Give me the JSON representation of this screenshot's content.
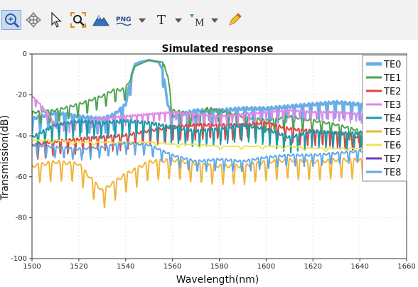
{
  "toolbar": {
    "buttons": [
      {
        "name": "zoom-region-button",
        "icon": "zoom-region-icon",
        "active": true
      },
      {
        "name": "pan-button",
        "icon": "pan-arrows-icon"
      },
      {
        "name": "select-button",
        "icon": "cursor-arrow-icon"
      },
      {
        "name": "zoom-fit-button",
        "icon": "zoom-fit-icon"
      },
      {
        "name": "plot-style-button",
        "icon": "mountain-icon"
      },
      {
        "name": "export-png-button",
        "icon": "png-file-icon",
        "text": "PNG"
      },
      {
        "name": "text-button",
        "icon": "text-t-icon",
        "text": "T"
      },
      {
        "name": "marker-button",
        "icon": "marker-m-icon",
        "text": "M"
      },
      {
        "name": "draw-button",
        "icon": "pencil-icon"
      }
    ]
  },
  "colors": {
    "TE0": "#6aaee8",
    "TE1": "#4ea34e",
    "TE2": "#e04444",
    "TE3": "#dd88e8",
    "TE4": "#1b9aaa",
    "TE5": "#f2b43c",
    "TE6": "#f0e64a",
    "TE7": "#6a3fb8",
    "TE8": "#5ea9e6"
  },
  "chart_data": {
    "type": "line",
    "title": "Simulated response",
    "xlabel": "Wavelength(nm)",
    "ylabel": "Transmission(dB)",
    "xlim": [
      1500,
      1660
    ],
    "ylim": [
      -100,
      0
    ],
    "xticks": [
      1500,
      1520,
      1540,
      1560,
      1580,
      1600,
      1620,
      1640,
      1660
    ],
    "yticks": [
      0,
      -20,
      -40,
      -60,
      -80,
      -100
    ],
    "legend_position": "top-right",
    "series": [
      {
        "name": "TE0",
        "x": [
          1500,
          1510,
          1520,
          1530,
          1535,
          1540,
          1542,
          1544,
          1546,
          1550,
          1554,
          1556,
          1558,
          1560,
          1570,
          1580,
          1590,
          1600,
          1610,
          1620,
          1630,
          1640,
          1642
        ],
        "y": [
          -31,
          -28,
          -30,
          -31,
          -29,
          -24,
          -12,
          -5,
          -4,
          -3,
          -4,
          -8,
          -24,
          -30,
          -27,
          -27,
          -26,
          -26,
          -25,
          -24,
          -23,
          -24,
          -25
        ]
      },
      {
        "name": "TE1",
        "x": [
          1500,
          1510,
          1520,
          1525,
          1530,
          1535,
          1538,
          1540,
          1542,
          1544,
          1550,
          1556,
          1558,
          1560,
          1565,
          1570,
          1575,
          1580,
          1590,
          1600,
          1610,
          1620,
          1630,
          1640,
          1642
        ],
        "y": [
          -28,
          -27,
          -24,
          -22,
          -20,
          -17,
          -17,
          -16,
          -12,
          -6,
          -3,
          -4,
          -10,
          -27,
          -28,
          -30,
          -26,
          -27,
          -30,
          -32,
          -30,
          -32,
          -34,
          -37,
          -40
        ]
      },
      {
        "name": "TE2",
        "x": [
          1500,
          1510,
          1520,
          1530,
          1540,
          1550,
          1560,
          1570,
          1580,
          1590,
          1600,
          1610,
          1620,
          1630,
          1640,
          1643
        ],
        "y": [
          -44,
          -42,
          -41,
          -40,
          -39,
          -37,
          -35,
          -34,
          -34,
          -34,
          -33,
          -36,
          -37,
          -38,
          -40,
          -41
        ]
      },
      {
        "name": "TE3",
        "x": [
          1500,
          1505,
          1510,
          1520,
          1530,
          1540,
          1550,
          1560,
          1570,
          1580,
          1590,
          1600,
          1610,
          1620,
          1630,
          1640,
          1642
        ],
        "y": [
          -20,
          -26,
          -34,
          -33,
          -31,
          -30,
          -29,
          -28,
          -29,
          -30,
          -29,
          -28,
          -27,
          -28,
          -28,
          -29,
          -29
        ]
      },
      {
        "name": "TE4",
        "x": [
          1500,
          1510,
          1520,
          1530,
          1540,
          1550,
          1560,
          1570,
          1580,
          1590,
          1600,
          1610,
          1620,
          1630,
          1640,
          1642
        ],
        "y": [
          -40,
          -34,
          -32,
          -33,
          -32,
          -33,
          -35,
          -37,
          -36,
          -34,
          -36,
          -40,
          -37,
          -38,
          -38,
          -38
        ]
      },
      {
        "name": "TE5",
        "x": [
          1500,
          1510,
          1520,
          1525,
          1530,
          1540,
          1550,
          1560,
          1570,
          1580,
          1590,
          1600,
          1610,
          1620,
          1630,
          1640,
          1642
        ],
        "y": [
          -54,
          -52,
          -53,
          -60,
          -66,
          -58,
          -52,
          -51,
          -53,
          -54,
          -54,
          -52,
          -51,
          -52,
          -51,
          -51,
          -52
        ]
      },
      {
        "name": "TE6",
        "x": [
          1500,
          1510,
          1520,
          1530,
          1540,
          1550,
          1560,
          1570,
          1580,
          1590,
          1600,
          1610,
          1620,
          1630,
          1640,
          1642
        ],
        "y": [
          -42,
          -42,
          -43,
          -43,
          -43,
          -43,
          -44,
          -44,
          -45,
          -45,
          -45,
          -45,
          -46,
          -46,
          -46,
          -46
        ]
      },
      {
        "name": "TE7",
        "x": [],
        "y": []
      },
      {
        "name": "TE8",
        "x": [
          1500,
          1510,
          1520,
          1530,
          1540,
          1550,
          1560,
          1570,
          1580,
          1590,
          1600,
          1610,
          1620,
          1630,
          1640,
          1642
        ],
        "y": [
          -44,
          -45,
          -46,
          -45,
          -43,
          -44,
          -49,
          -52,
          -51,
          -52,
          -50,
          -49,
          -49,
          -48,
          -47,
          -47
        ]
      }
    ]
  }
}
